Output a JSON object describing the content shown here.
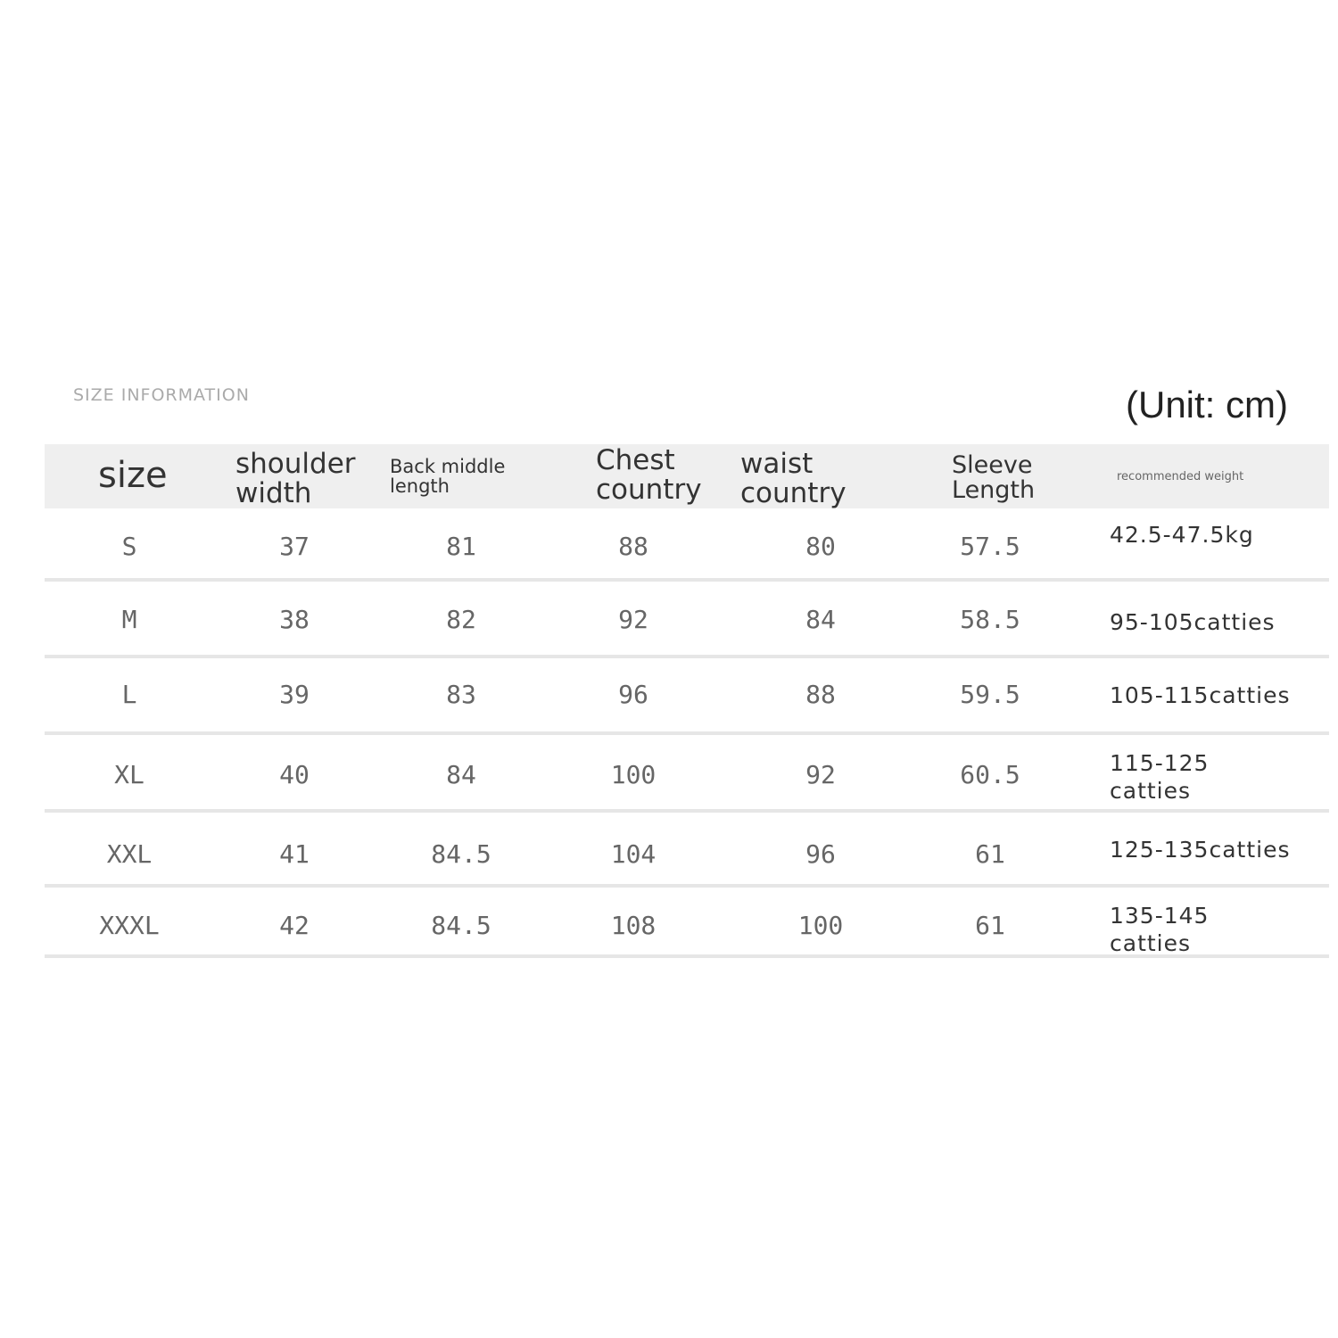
{
  "title": "SIZE INFORMATION",
  "unit": "(Unit: cm)",
  "headers": {
    "size": "size",
    "shoulder": [
      "shoulder",
      "width"
    ],
    "back": [
      "Back middle",
      "length"
    ],
    "chest": [
      "Chest",
      "country"
    ],
    "waist": [
      "waist",
      "country"
    ],
    "sleeve": [
      "Sleeve",
      "Length"
    ],
    "weight": "recommended weight"
  },
  "rows": [
    {
      "size": "S",
      "shoulder": "37",
      "back": "81",
      "chest": "88",
      "waist": "80",
      "sleeve": "57.5",
      "weight": "42.5-47.5kg"
    },
    {
      "size": "M",
      "shoulder": "38",
      "back": "82",
      "chest": "92",
      "waist": "84",
      "sleeve": "58.5",
      "weight": "95-105catties"
    },
    {
      "size": "L",
      "shoulder": "39",
      "back": "83",
      "chest": "96",
      "waist": "88",
      "sleeve": "59.5",
      "weight": "105-115catties"
    },
    {
      "size": "XL",
      "shoulder": "40",
      "back": "84",
      "chest": "100",
      "waist": "92",
      "sleeve": "60.5",
      "weight": "115-125 catties"
    },
    {
      "size": "XXL",
      "shoulder": "41",
      "back": "84.5",
      "chest": "104",
      "waist": "96",
      "sleeve": "61",
      "weight": "125-135catties"
    },
    {
      "size": "XXXL",
      "shoulder": "42",
      "back": "84.5",
      "chest": "108",
      "waist": "100",
      "sleeve": "61",
      "weight": "135-145 catties"
    }
  ]
}
